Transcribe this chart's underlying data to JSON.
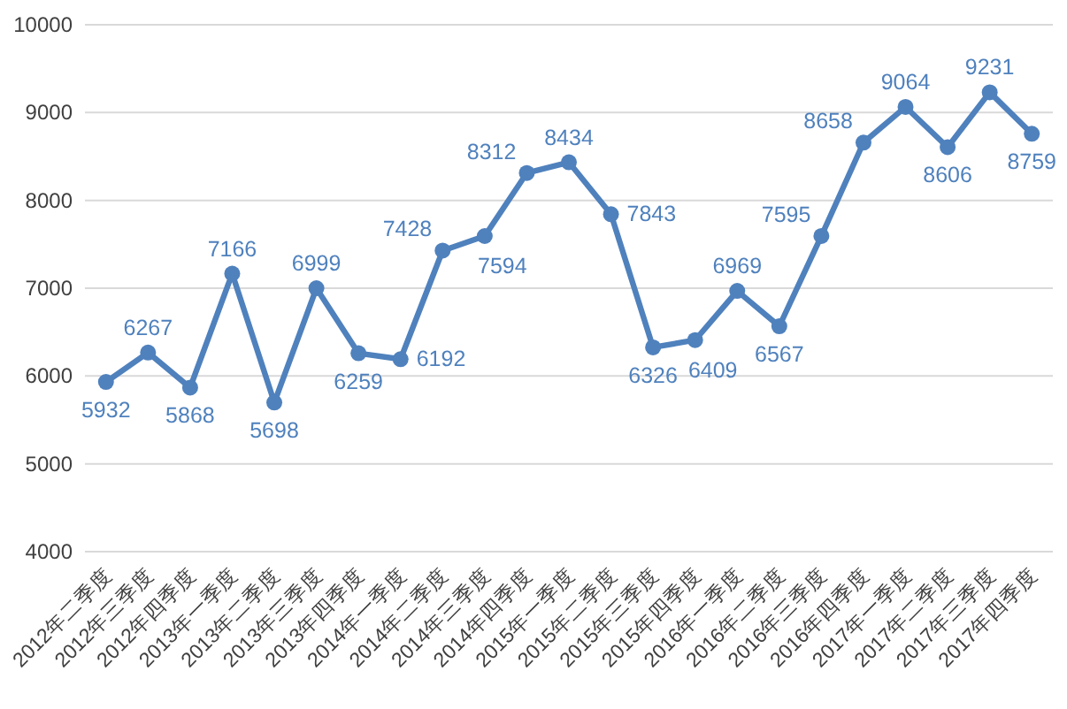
{
  "chart_data": {
    "type": "line",
    "categories": [
      "2012年二季度",
      "2012年三季度",
      "2012年四季度",
      "2013年一季度",
      "2013年二季度",
      "2013年三季度",
      "2013年四季度",
      "2014年一季度",
      "2014年二季度",
      "2014年三季度",
      "2014年四季度",
      "2015年一季度",
      "2015年二季度",
      "2015年三季度",
      "2015年四季度",
      "2016年一季度",
      "2016年二季度",
      "2016年三季度",
      "2016年四季度",
      "2017年一季度",
      "2017年二季度",
      "2017年三季度",
      "2017年四季度"
    ],
    "series": [
      {
        "color": "#4f81bd",
        "values": [
          5932,
          6267,
          5868,
          7166,
          5698,
          6999,
          6259,
          6192,
          7428,
          7594,
          8312,
          8434,
          7843,
          6326,
          6409,
          6969,
          6567,
          7595,
          8658,
          9064,
          8606,
          9231,
          8759
        ]
      }
    ],
    "ylim": [
      4000,
      10000
    ],
    "yticks": [
      4000,
      5000,
      6000,
      7000,
      8000,
      9000,
      10000
    ],
    "grid": "y",
    "marker": "circle",
    "line_style": "solid",
    "data_labels": true
  }
}
